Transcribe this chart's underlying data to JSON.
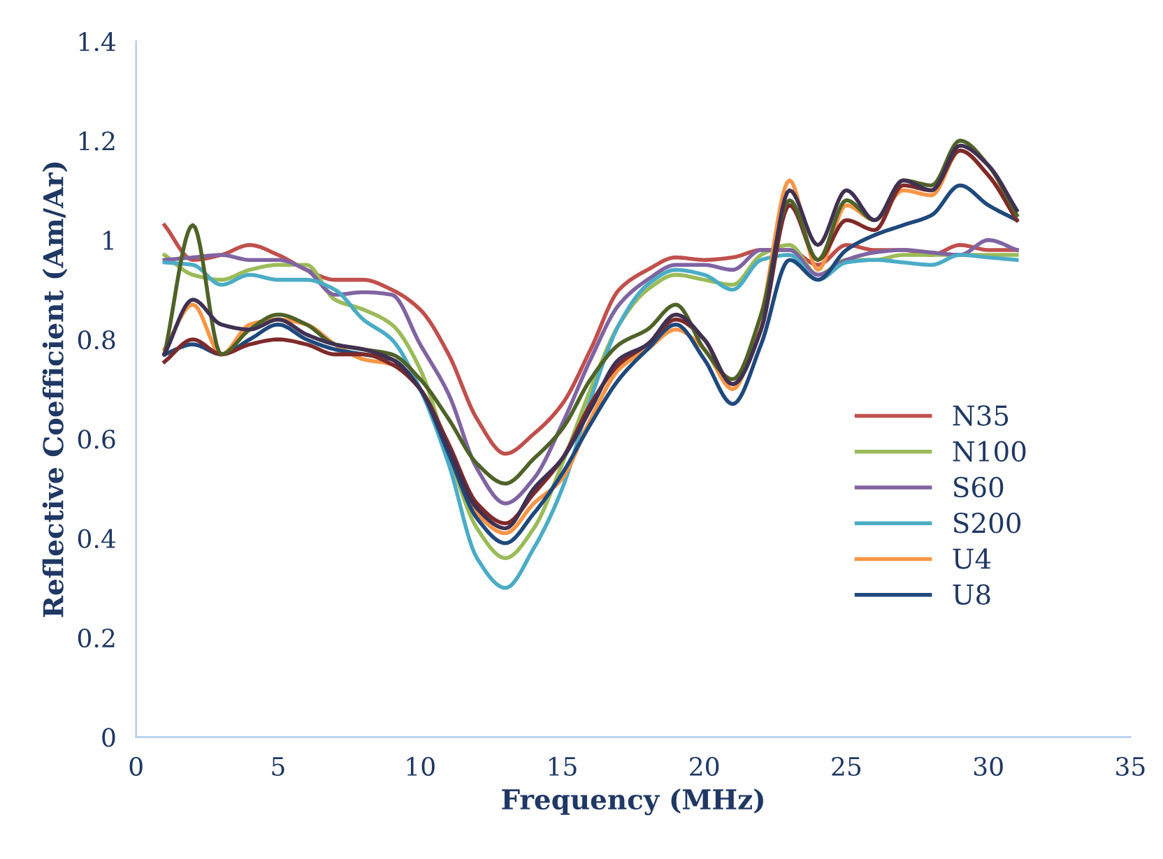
{
  "chart_data": {
    "type": "line",
    "xlabel": "Frequency (MHz)",
    "ylabel": "Reflective Coefficient (Am/Ar)",
    "x": [
      1,
      2,
      3,
      4,
      5,
      6,
      7,
      8,
      9,
      10,
      11,
      12,
      13,
      14,
      15,
      16,
      17,
      18,
      19,
      20,
      21,
      22,
      23,
      24,
      25,
      26,
      27,
      28,
      29,
      30,
      31
    ],
    "xlim": [
      0,
      35
    ],
    "xticks": [
      0,
      5,
      10,
      15,
      20,
      25,
      30,
      35
    ],
    "ylim": [
      0,
      1.4
    ],
    "yticks": [
      {
        "value": 0,
        "label": "0"
      },
      0.2,
      0.4,
      0.6,
      0.8,
      {
        "value": 1,
        "label": "1"
      },
      1.2,
      1.4
    ],
    "grid": false,
    "legend": "right",
    "marker": "none",
    "line_style": "solid",
    "series": [
      {
        "name": "N35",
        "color": "#c0504d",
        "values": [
          1.03,
          0.96,
          0.97,
          0.99,
          0.97,
          0.94,
          0.92,
          0.92,
          0.9,
          0.86,
          0.77,
          0.64,
          0.57,
          0.61,
          0.67,
          0.78,
          0.9,
          0.94,
          0.965,
          0.96,
          0.965,
          0.98,
          0.98,
          0.95,
          0.99,
          0.98,
          0.98,
          0.97,
          0.99,
          0.98,
          0.98
        ]
      },
      {
        "name": "N100",
        "color": "#9bbb59",
        "values": [
          0.97,
          0.93,
          0.92,
          0.94,
          0.95,
          0.95,
          0.88,
          0.86,
          0.83,
          0.74,
          0.57,
          0.42,
          0.36,
          0.42,
          0.55,
          0.7,
          0.83,
          0.9,
          0.93,
          0.92,
          0.91,
          0.97,
          0.99,
          0.93,
          0.96,
          0.96,
          0.97,
          0.97,
          0.97,
          0.97,
          0.97
        ]
      },
      {
        "name": "S60",
        "color": "#8064a2",
        "values": [
          0.96,
          0.965,
          0.97,
          0.96,
          0.96,
          0.94,
          0.89,
          0.895,
          0.89,
          0.79,
          0.69,
          0.54,
          0.47,
          0.52,
          0.63,
          0.76,
          0.87,
          0.92,
          0.95,
          0.95,
          0.94,
          0.98,
          0.98,
          0.93,
          0.96,
          0.975,
          0.98,
          0.975,
          0.97,
          1.0,
          0.98
        ]
      },
      {
        "name": "S200",
        "color": "#4bacc6",
        "values": [
          0.955,
          0.95,
          0.91,
          0.93,
          0.92,
          0.92,
          0.9,
          0.84,
          0.8,
          0.7,
          0.55,
          0.36,
          0.3,
          0.38,
          0.5,
          0.68,
          0.83,
          0.91,
          0.94,
          0.93,
          0.9,
          0.96,
          0.97,
          0.92,
          0.955,
          0.96,
          0.955,
          0.95,
          0.97,
          0.965,
          0.96
        ]
      },
      {
        "name": "U4",
        "color": "#f79646",
        "values": [
          0.78,
          0.87,
          0.77,
          0.83,
          0.84,
          0.83,
          0.79,
          0.76,
          0.75,
          0.7,
          0.58,
          0.45,
          0.41,
          0.47,
          0.52,
          0.64,
          0.74,
          0.78,
          0.82,
          0.78,
          0.7,
          0.85,
          1.12,
          0.94,
          1.07,
          1.04,
          1.1,
          1.09,
          1.18,
          1.13,
          1.05
        ]
      },
      {
        "name": "U8",
        "color": "#1f497d",
        "values": [
          0.77,
          0.79,
          0.77,
          0.8,
          0.83,
          0.8,
          0.78,
          0.77,
          0.76,
          0.7,
          0.57,
          0.44,
          0.39,
          0.45,
          0.53,
          0.63,
          0.72,
          0.78,
          0.83,
          0.76,
          0.67,
          0.79,
          0.96,
          0.92,
          0.98,
          1.01,
          1.03,
          1.05,
          1.11,
          1.07,
          1.04
        ]
      },
      {
        "color": "#7f2a2a",
        "values": [
          0.755,
          0.8,
          0.77,
          0.79,
          0.8,
          0.79,
          0.77,
          0.77,
          0.75,
          0.7,
          0.59,
          0.47,
          0.43,
          0.49,
          0.56,
          0.67,
          0.75,
          0.79,
          0.84,
          0.8,
          0.71,
          0.82,
          1.07,
          0.96,
          1.04,
          1.02,
          1.11,
          1.1,
          1.18,
          1.13,
          1.04
        ]
      },
      {
        "color": "#4f6228",
        "values": [
          0.77,
          1.03,
          0.77,
          0.82,
          0.85,
          0.83,
          0.79,
          0.78,
          0.77,
          0.72,
          0.64,
          0.55,
          0.51,
          0.56,
          0.62,
          0.72,
          0.79,
          0.82,
          0.87,
          0.78,
          0.72,
          0.85,
          1.08,
          0.96,
          1.08,
          1.04,
          1.12,
          1.11,
          1.2,
          1.15,
          1.05
        ]
      },
      {
        "color": "#403152",
        "values": [
          0.77,
          0.88,
          0.83,
          0.82,
          0.84,
          0.81,
          0.79,
          0.78,
          0.76,
          0.7,
          0.58,
          0.46,
          0.42,
          0.5,
          0.56,
          0.66,
          0.76,
          0.79,
          0.85,
          0.8,
          0.71,
          0.82,
          1.1,
          0.99,
          1.1,
          1.04,
          1.12,
          1.1,
          1.19,
          1.15,
          1.06
        ]
      }
    ]
  }
}
